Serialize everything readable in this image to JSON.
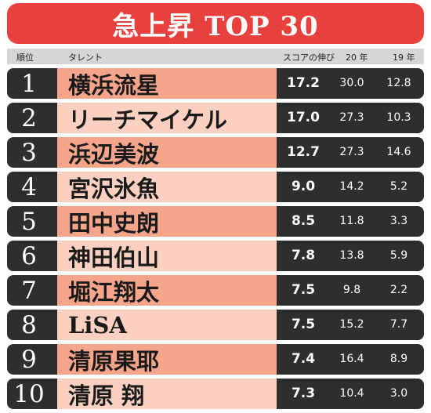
{
  "title": "急上昇 TOP 30",
  "header": {
    "rank": "順位",
    "talent": "タレント",
    "growth": "スコアの伸び",
    "y20": "20 年",
    "y19": "19 年"
  },
  "rows": [
    {
      "rank": "1",
      "name": "横浜流星",
      "growth": "17.2",
      "y20": "30.0",
      "y19": "12.8"
    },
    {
      "rank": "2",
      "name": "リーチマイケル",
      "growth": "17.0",
      "y20": "27.3",
      "y19": "10.3"
    },
    {
      "rank": "3",
      "name": "浜辺美波",
      "growth": "12.7",
      "y20": "27.3",
      "y19": "14.6"
    },
    {
      "rank": "4",
      "name": "宮沢氷魚",
      "growth": "9.0",
      "y20": "14.2",
      "y19": "5.2"
    },
    {
      "rank": "5",
      "name": "田中史朗",
      "growth": "8.5",
      "y20": "11.8",
      "y19": "3.3"
    },
    {
      "rank": "6",
      "name": "神田伯山",
      "growth": "7.8",
      "y20": "13.8",
      "y19": "5.9"
    },
    {
      "rank": "7",
      "name": "堀江翔太",
      "growth": "7.5",
      "y20": "9.8",
      "y19": "2.2"
    },
    {
      "rank": "8",
      "name": "LiSA",
      "growth": "7.5",
      "y20": "15.2",
      "y19": "7.7"
    },
    {
      "rank": "9",
      "name": "清原果耶",
      "growth": "7.4",
      "y20": "16.4",
      "y19": "8.9"
    },
    {
      "rank": "10",
      "name": "清原 翔",
      "growth": "7.3",
      "y20": "10.4",
      "y19": "3.0"
    }
  ]
}
